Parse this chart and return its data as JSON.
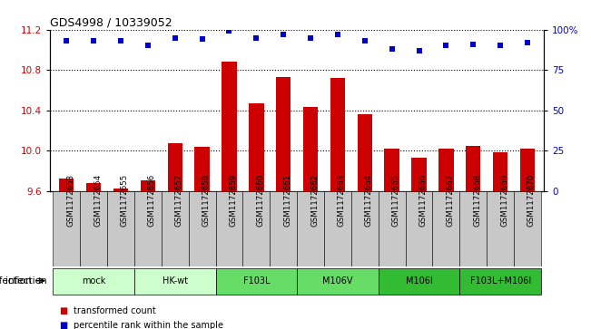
{
  "title": "GDS4998 / 10339052",
  "samples": [
    "GSM1172653",
    "GSM1172654",
    "GSM1172655",
    "GSM1172656",
    "GSM1172657",
    "GSM1172658",
    "GSM1172659",
    "GSM1172660",
    "GSM1172661",
    "GSM1172662",
    "GSM1172663",
    "GSM1172664",
    "GSM1172665",
    "GSM1172666",
    "GSM1172667",
    "GSM1172668",
    "GSM1172669",
    "GSM1172670"
  ],
  "bar_values": [
    9.72,
    9.68,
    9.62,
    9.7,
    10.07,
    10.04,
    10.88,
    10.47,
    10.73,
    10.43,
    10.72,
    10.36,
    10.02,
    9.93,
    10.02,
    10.05,
    9.98,
    10.02
  ],
  "percentile_values": [
    93,
    93,
    93,
    90,
    95,
    94,
    99,
    95,
    97,
    95,
    97,
    93,
    88,
    87,
    90,
    91,
    90,
    92
  ],
  "ylim": [
    9.6,
    11.2
  ],
  "yticks": [
    9.6,
    10.0,
    10.4,
    10.8,
    11.2
  ],
  "right_yticks": [
    0,
    25,
    50,
    75,
    100
  ],
  "bar_color": "#cc0000",
  "dot_color": "#0000cc",
  "groups": [
    {
      "label": "mock",
      "start": 0,
      "end": 2,
      "color": "#ccffcc"
    },
    {
      "label": "HK-wt",
      "start": 3,
      "end": 5,
      "color": "#ccffcc"
    },
    {
      "label": "F103L",
      "start": 6,
      "end": 8,
      "color": "#66dd66"
    },
    {
      "label": "M106V",
      "start": 9,
      "end": 11,
      "color": "#66dd66"
    },
    {
      "label": "M106I",
      "start": 12,
      "end": 14,
      "color": "#33bb33"
    },
    {
      "label": "F103L+M106I",
      "start": 15,
      "end": 17,
      "color": "#33bb33"
    }
  ],
  "infection_label": "infection",
  "legend_items": [
    {
      "label": "transformed count",
      "color": "#cc0000"
    },
    {
      "label": "percentile rank within the sample",
      "color": "#0000cc"
    }
  ],
  "sample_box_color": "#c8c8c8",
  "plot_bg": "#ffffff",
  "xlim": [
    -0.6,
    17.6
  ]
}
